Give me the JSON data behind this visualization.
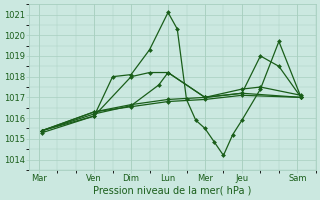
{
  "background_color": "#cbe8e0",
  "grid_color": "#a8cfc0",
  "line_color": "#1a5e1a",
  "title": "Pression niveau de la mer( hPa )",
  "ylim": [
    1013.5,
    1021.5
  ],
  "yticks": [
    1014,
    1015,
    1016,
    1017,
    1018,
    1019,
    1020,
    1021
  ],
  "x_labels": [
    "Mar",
    "Ven",
    "Dim",
    "Lun",
    "Mer",
    "Jeu",
    "Sam"
  ],
  "x_positions": [
    0,
    3,
    5,
    7,
    9,
    11,
    14
  ],
  "xlim": [
    -0.5,
    15.0
  ],
  "lines_data": [
    {
      "x": [
        0.2,
        3.0,
        4.0,
        5.0,
        6.0,
        7.0,
        7.5,
        8.0,
        8.5,
        9.0,
        9.5,
        10.0,
        10.5,
        11.0,
        12.0,
        13.0,
        14.2
      ],
      "y": [
        1015.3,
        1016.1,
        1018.0,
        1018.1,
        1019.3,
        1021.1,
        1020.3,
        1016.9,
        1015.9,
        1015.5,
        1014.85,
        1014.2,
        1015.2,
        1015.9,
        1017.4,
        1019.7,
        1017.0
      ]
    },
    {
      "x": [
        0.2,
        3.0,
        5.0,
        6.0,
        7.0,
        9.0,
        11.0,
        12.0,
        13.0,
        14.2
      ],
      "y": [
        1015.4,
        1016.1,
        1018.0,
        1018.2,
        1018.2,
        1017.0,
        1017.2,
        1019.0,
        1018.5,
        1017.0
      ]
    },
    {
      "x": [
        0.2,
        3.0,
        5.0,
        6.5,
        7.0,
        9.0,
        11.0,
        12.0,
        14.2
      ],
      "y": [
        1015.4,
        1016.2,
        1016.6,
        1017.6,
        1018.2,
        1017.0,
        1017.4,
        1017.5,
        1017.1
      ]
    },
    {
      "x": [
        0.2,
        3.0,
        5.0,
        7.0,
        9.0,
        11.0,
        14.2
      ],
      "y": [
        1015.4,
        1016.3,
        1016.65,
        1016.9,
        1017.0,
        1017.2,
        1017.0
      ]
    },
    {
      "x": [
        0.2,
        3.0,
        5.0,
        7.0,
        9.0,
        11.0,
        14.2
      ],
      "y": [
        1015.4,
        1016.3,
        1016.55,
        1016.8,
        1016.9,
        1017.1,
        1017.0
      ]
    }
  ]
}
